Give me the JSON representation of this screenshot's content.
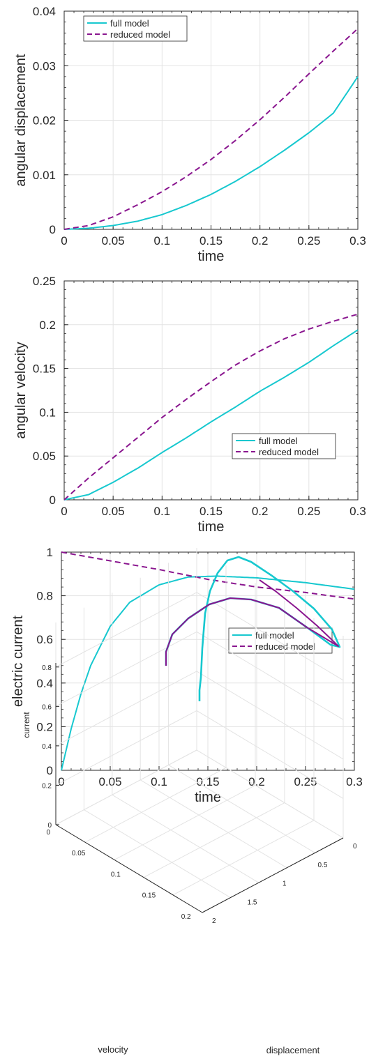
{
  "colors": {
    "full": "#17c8cf",
    "reduced": "#8a168f",
    "grid": "#e3e3e3",
    "axis": "#262626"
  },
  "chart_data": [
    {
      "type": "line",
      "xlabel": "time",
      "ylabel": "angular displacement",
      "xlim": [
        0,
        0.3
      ],
      "ylim": [
        0,
        0.04
      ],
      "xticks": [
        0,
        0.05,
        0.1,
        0.15,
        0.2,
        0.25,
        0.3
      ],
      "xtick_labels": [
        "0",
        "0.05",
        "0.1",
        "0.15",
        "0.2",
        "0.25",
        "0.3"
      ],
      "yticks": [
        0,
        0.01,
        0.02,
        0.03,
        0.04
      ],
      "ytick_labels": [
        "0",
        "0.01",
        "0.02",
        "0.03",
        "0.04"
      ],
      "grid": true,
      "legend_position": "top-left",
      "series": [
        {
          "name": "full model",
          "style": "solid",
          "x": [
            0,
            0.025,
            0.05,
            0.075,
            0.1,
            0.125,
            0.15,
            0.175,
            0.2,
            0.225,
            0.25,
            0.275,
            0.3
          ],
          "y": [
            0,
            0.0002,
            0.0007,
            0.0015,
            0.0027,
            0.0044,
            0.0064,
            0.0088,
            0.0115,
            0.0145,
            0.0177,
            0.0213,
            0.028
          ]
        },
        {
          "name": "reduced model",
          "style": "dashed",
          "x": [
            0,
            0.025,
            0.05,
            0.075,
            0.1,
            0.125,
            0.15,
            0.175,
            0.2,
            0.225,
            0.25,
            0.275,
            0.3
          ],
          "y": [
            0,
            0.0007,
            0.0023,
            0.0045,
            0.0069,
            0.0097,
            0.0128,
            0.0163,
            0.0201,
            0.0242,
            0.0285,
            0.0327,
            0.0368
          ]
        }
      ]
    },
    {
      "type": "line",
      "xlabel": "time",
      "ylabel": "angular velocity",
      "xlim": [
        0,
        0.3
      ],
      "ylim": [
        0,
        0.25
      ],
      "xticks": [
        0,
        0.05,
        0.1,
        0.15,
        0.2,
        0.25,
        0.3
      ],
      "xtick_labels": [
        "0",
        "0.05",
        "0.1",
        "0.15",
        "0.2",
        "0.25",
        "0.3"
      ],
      "yticks": [
        0,
        0.05,
        0.1,
        0.15,
        0.2,
        0.25
      ],
      "ytick_labels": [
        "0",
        "0.05",
        "0.1",
        "0.15",
        "0.2",
        "0.25"
      ],
      "grid": true,
      "legend_position": "lower-right",
      "series": [
        {
          "name": "full model",
          "style": "solid",
          "x": [
            0,
            0.025,
            0.05,
            0.075,
            0.1,
            0.125,
            0.15,
            0.175,
            0.2,
            0.225,
            0.25,
            0.275,
            0.3
          ],
          "y": [
            0,
            0.006,
            0.02,
            0.036,
            0.054,
            0.071,
            0.089,
            0.106,
            0.124,
            0.14,
            0.157,
            0.176,
            0.194
          ]
        },
        {
          "name": "reduced model",
          "style": "dashed",
          "x": [
            0,
            0.025,
            0.05,
            0.075,
            0.1,
            0.125,
            0.15,
            0.175,
            0.2,
            0.225,
            0.25,
            0.275,
            0.3
          ],
          "y": [
            0,
            0.025,
            0.048,
            0.071,
            0.094,
            0.115,
            0.135,
            0.154,
            0.17,
            0.184,
            0.195,
            0.204,
            0.212
          ]
        }
      ]
    },
    {
      "type": "line",
      "xlabel": "time",
      "ylabel": "electric current",
      "xlim": [
        0,
        0.3
      ],
      "ylim": [
        0,
        1
      ],
      "xticks": [
        0,
        0.05,
        0.1,
        0.15,
        0.2,
        0.25,
        0.3
      ],
      "xtick_labels": [
        "0",
        "0.05",
        "0.1",
        "0.15",
        "0.2",
        "0.25",
        "0.3"
      ],
      "yticks": [
        0,
        0.2,
        0.4,
        0.6,
        0.8,
        1
      ],
      "ytick_labels": [
        "0",
        "0.2",
        "0.4",
        "0.6",
        "0.8",
        "1"
      ],
      "grid": true,
      "legend_position": "middle-right",
      "series": [
        {
          "name": "full model",
          "style": "solid",
          "x": [
            0,
            0.01,
            0.02,
            0.03,
            0.05,
            0.07,
            0.1,
            0.13,
            0.16,
            0.2,
            0.25,
            0.3
          ],
          "y": [
            0,
            0.19,
            0.35,
            0.48,
            0.66,
            0.77,
            0.85,
            0.886,
            0.89,
            0.882,
            0.86,
            0.83
          ]
        },
        {
          "name": "reduced model",
          "style": "dashed",
          "x": [
            0,
            0.05,
            0.1,
            0.15,
            0.2,
            0.25,
            0.3
          ],
          "y": [
            1,
            0.96,
            0.92,
            0.875,
            0.84,
            0.815,
            0.785
          ]
        }
      ]
    },
    {
      "type": "line",
      "dimensions": 3,
      "xlabel": "velocity",
      "ylabel": "displacement",
      "zlabel": "current",
      "velocity_ticks": [
        "0",
        "0.05",
        "0.1",
        "0.15",
        "0.2"
      ],
      "displacement_ticks": [
        "0",
        "0.5",
        "1",
        "1.5",
        "2"
      ],
      "current_ticks": [
        "0",
        "0.2",
        "0.4",
        "0.6",
        "0.8"
      ],
      "grid": true,
      "series": [
        {
          "style": "solid",
          "color_key": "full"
        },
        {
          "style": "solid",
          "color_key": "reduced"
        }
      ]
    }
  ]
}
